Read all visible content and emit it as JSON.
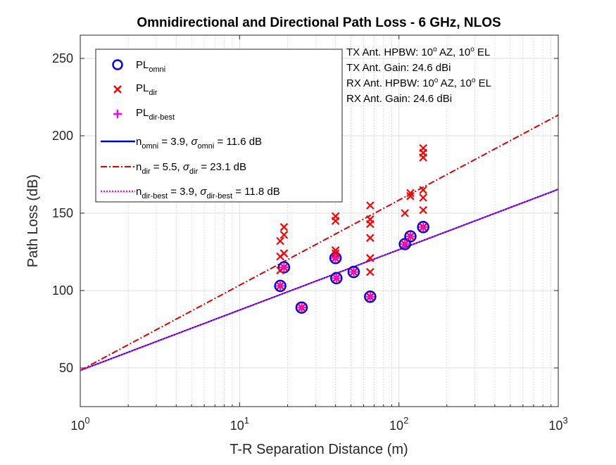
{
  "chart_data": {
    "type": "scatter",
    "title": "Omnidirectional and Directional Path Loss - 6 GHz, NLOS",
    "xlabel": "T-R Separation Distance (m)",
    "ylabel": "Path Loss (dB)",
    "xscale": "log",
    "xlim": [
      1,
      1000
    ],
    "ylim": [
      25,
      265
    ],
    "grid": true,
    "x_ticks": [
      {
        "value": 1,
        "base": "10",
        "exp": "0"
      },
      {
        "value": 10,
        "base": "10",
        "exp": "1"
      },
      {
        "value": 100,
        "base": "10",
        "exp": "2"
      },
      {
        "value": 1000,
        "base": "10",
        "exp": "3"
      }
    ],
    "y_ticks": [
      50,
      100,
      150,
      200,
      250
    ],
    "legend_position": "top-left",
    "series": [
      {
        "key": "omni",
        "kind": "points",
        "marker": "circle",
        "color": "#0000ff",
        "label_main": "PL",
        "label_sub": "omni",
        "points": [
          [
            18,
            103
          ],
          [
            19,
            115
          ],
          [
            24.5,
            89
          ],
          [
            40,
            121
          ],
          [
            40.5,
            108
          ],
          [
            52,
            112
          ],
          [
            66,
            96
          ],
          [
            109,
            130
          ],
          [
            118,
            135
          ],
          [
            142,
            141
          ]
        ]
      },
      {
        "key": "dir",
        "kind": "points",
        "marker": "x",
        "color": "#ff0000",
        "label_main": "PL",
        "label_sub": "dir",
        "points": [
          [
            18,
            103
          ],
          [
            18,
            113
          ],
          [
            18,
            122
          ],
          [
            18,
            132
          ],
          [
            19,
            115
          ],
          [
            19,
            124
          ],
          [
            19,
            136
          ],
          [
            19,
            141
          ],
          [
            24.5,
            89
          ],
          [
            40,
            121
          ],
          [
            40,
            124
          ],
          [
            40,
            126
          ],
          [
            40,
            145
          ],
          [
            40,
            148
          ],
          [
            40.5,
            108
          ],
          [
            52,
            112
          ],
          [
            66,
            96
          ],
          [
            66,
            112
          ],
          [
            66,
            121
          ],
          [
            66,
            134
          ],
          [
            66,
            143
          ],
          [
            66,
            146
          ],
          [
            66,
            155
          ],
          [
            109,
            130
          ],
          [
            109,
            150
          ],
          [
            118,
            135
          ],
          [
            118,
            161
          ],
          [
            118,
            163
          ],
          [
            142,
            141
          ],
          [
            142,
            152
          ],
          [
            142,
            160
          ],
          [
            142,
            165
          ],
          [
            142,
            186
          ],
          [
            142,
            189
          ],
          [
            142,
            192
          ]
        ]
      },
      {
        "key": "best",
        "kind": "points",
        "marker": "plus",
        "color": "#ff00ff",
        "label_main": "PL",
        "label_sub": "dir-best",
        "points": [
          [
            18,
            103
          ],
          [
            19,
            115
          ],
          [
            24.5,
            89
          ],
          [
            40,
            121
          ],
          [
            40.5,
            108
          ],
          [
            52,
            112
          ],
          [
            66,
            96
          ],
          [
            109,
            130
          ],
          [
            118,
            135
          ],
          [
            142,
            141
          ]
        ]
      },
      {
        "key": "fit_omni",
        "kind": "line",
        "style": "solid",
        "color": "#0000cc",
        "intercept": 48.4,
        "n": 3.9,
        "label": {
          "n_sub": "omni",
          "n_val": " = 3.9, ",
          "sigma_sub": "omni",
          "sigma_val": " = 11.6 dB"
        }
      },
      {
        "key": "fit_dir",
        "kind": "line",
        "style": "dashdot",
        "color": "#dd0000",
        "intercept": 48.4,
        "n": 5.5,
        "label": {
          "n_sub": "dir",
          "n_val": " = 5.5, ",
          "sigma_sub": "dir",
          "sigma_val": " = 23.1 dB"
        }
      },
      {
        "key": "fit_best",
        "kind": "line",
        "style": "dotted",
        "color": "#ff00ff",
        "intercept": 48.4,
        "n": 3.9,
        "label": {
          "n_sub": "dir-best",
          "n_val": " = 3.9, ",
          "sigma_sub": "dir-best",
          "sigma_val": " = 11.8 dB"
        }
      }
    ],
    "annotations": {
      "tx_hpbw": {
        "pre": "TX Ant. HPBW: 10",
        "sup1": "o",
        "mid": " AZ, 10",
        "sup2": "o",
        "post": " EL"
      },
      "tx_gain": "TX Ant. Gain: 24.6 dBi",
      "rx_hpbw": {
        "pre": "RX Ant. HPBW: 10",
        "sup1": "o",
        "mid": " AZ, 10",
        "sup2": "o",
        "post": " EL"
      },
      "rx_gain": "RX Ant. Gain: 24.6 dBi"
    },
    "legend_symbols": {
      "n": "n",
      "sigma": "σ"
    }
  }
}
